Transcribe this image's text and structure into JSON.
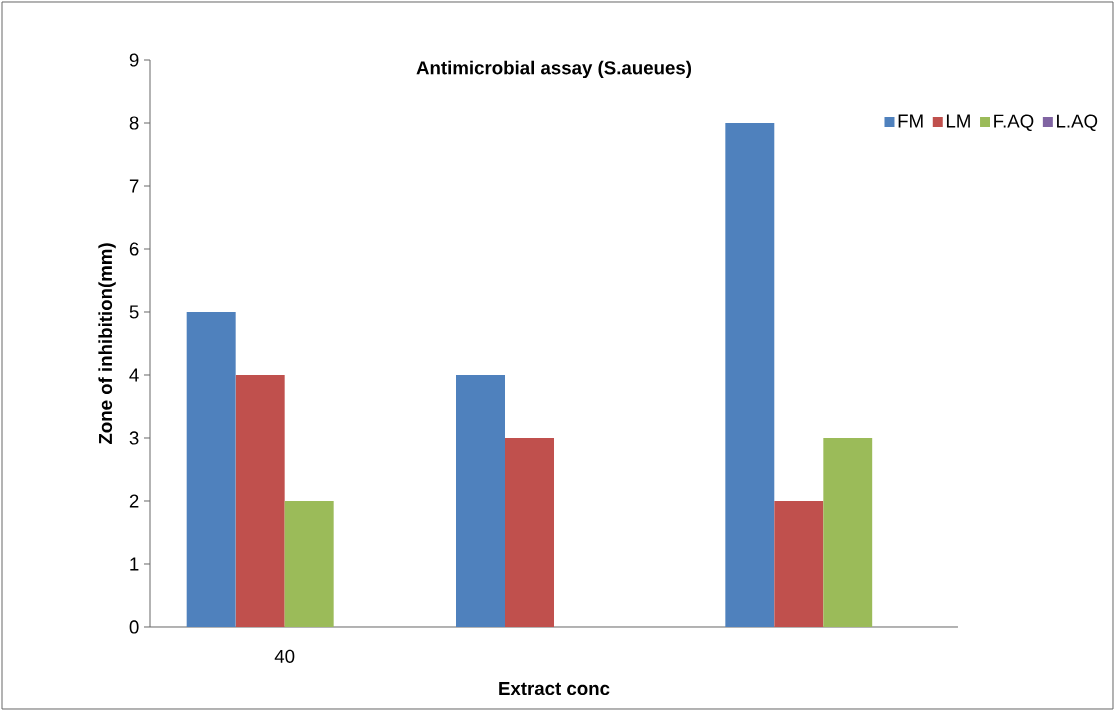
{
  "chart_data": {
    "type": "bar",
    "title": "Antimicrobial assay (S.aueues)",
    "xlabel": "Extract conc",
    "ylabel": "Zone of inhibition(mm)",
    "categories": [
      "40",
      null,
      null
    ],
    "series": [
      {
        "name": "FM",
        "color": "#4f81bd",
        "values": [
          5,
          4,
          8
        ]
      },
      {
        "name": "LM",
        "color": "#c0504d",
        "values": [
          4,
          3,
          2
        ]
      },
      {
        "name": "F.AQ",
        "color": "#9bbb59",
        "values": [
          2,
          0,
          3
        ]
      },
      {
        "name": "L.AQ",
        "color": "#8064a2",
        "values": [
          0,
          0,
          0
        ]
      }
    ],
    "ylim": [
      0,
      9
    ],
    "yticks": [
      0,
      1,
      2,
      3,
      4,
      5,
      6,
      7,
      8,
      9
    ],
    "grid": false,
    "legend": "top right"
  }
}
